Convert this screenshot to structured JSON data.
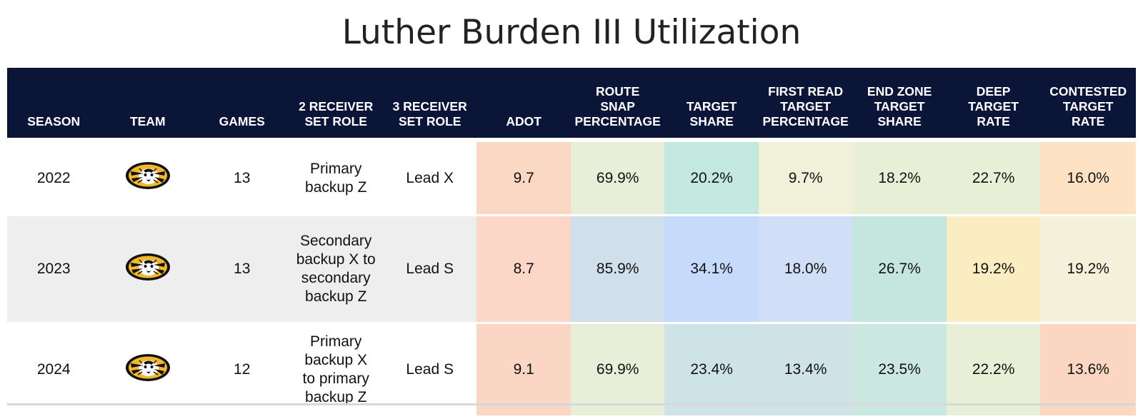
{
  "title": "Luther Burden III Utilization",
  "headers": [
    "SEASON",
    "TEAM",
    "GAMES",
    "2 RECEIVER\nSET ROLE",
    "3 RECEIVER\nSET ROLE",
    "ADOT",
    "ROUTE\nSNAP\nPERCENTAGE",
    "TARGET\nSHARE",
    "FIRST READ\nTARGET\nPERCENTAGE",
    "END ZONE\nTARGET\nSHARE",
    "DEEP\nTARGET\nRATE",
    "CONTESTED\nTARGET\nRATE"
  ],
  "team_icon": "missouri-tiger-logo-icon",
  "colors": {
    "header_bg": "#0b1538",
    "logo_gold": "#f1b82d",
    "logo_black": "#111111"
  },
  "rows": [
    {
      "season": "2022",
      "games": "13",
      "role2": "Primary backup Z",
      "role3": "Lead X",
      "adot": "9.7",
      "route_snap": "69.9%",
      "target_share": "20.2%",
      "first_read": "9.7%",
      "end_zone": "18.2%",
      "deep": "22.7%",
      "contested": "16.0%",
      "cell_colors": [
        "#fbd8c3",
        "#e8eed7",
        "#c3e8df",
        "#f1f0d9",
        "#e9eed7",
        "#e9eed7",
        "#fde2c4"
      ]
    },
    {
      "season": "2023",
      "games": "13",
      "role2": "Secondary backup X to secondary backup Z",
      "role3": "Lead S",
      "adot": "8.7",
      "route_snap": "85.9%",
      "target_share": "34.1%",
      "first_read": "18.0%",
      "end_zone": "26.7%",
      "deep": "19.2%",
      "contested": "19.2%",
      "cell_colors": [
        "#fcd7c7",
        "#cfe0ec",
        "#c6dbfc",
        "#d0dff7",
        "#c5e6de",
        "#fbedc2",
        "#f5f0da"
      ]
    },
    {
      "season": "2024",
      "games": "12",
      "role2": "Primary backup X to primary backup Z",
      "role3": "Lead S",
      "adot": "9.1",
      "route_snap": "69.9%",
      "target_share": "23.4%",
      "first_read": "13.4%",
      "end_zone": "23.5%",
      "deep": "22.2%",
      "contested": "13.6%",
      "cell_colors": [
        "#fcd6c5",
        "#e8eed7",
        "#cde3e7",
        "#cfe2e6",
        "#cbe8e0",
        "#e9eed7",
        "#fbd6c2"
      ]
    }
  ]
}
